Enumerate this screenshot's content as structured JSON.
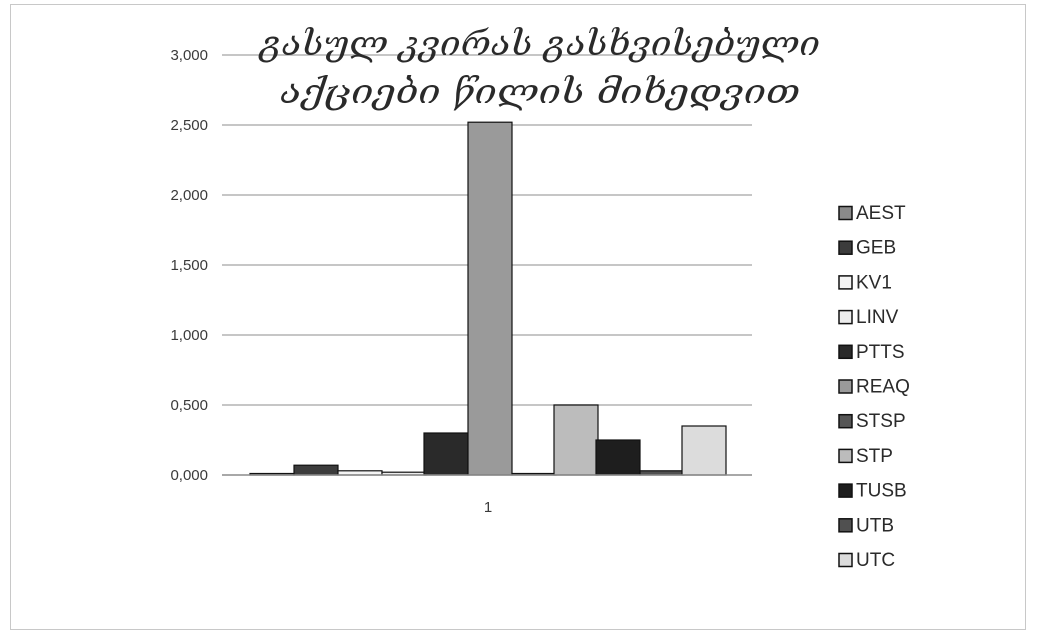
{
  "chart_data": {
    "type": "bar",
    "title": "გასულ კვირას გასხვისებული აქციები წილის მიხედვით",
    "title_lines": [
      "გასულ კვირას გასხვისებული",
      "აქციები წილის მიხედვით"
    ],
    "categories": [
      "1"
    ],
    "xlabel": "",
    "ylabel": "",
    "ylim": [
      0,
      3
    ],
    "yticks": [
      0,
      0.5,
      1,
      1.5,
      2,
      2.5,
      3
    ],
    "ytick_labels": [
      "0,000",
      "0,500",
      "1,000",
      "1,500",
      "2,000",
      "2,500",
      "3,000"
    ],
    "grid": true,
    "legend_position": "right",
    "series": [
      {
        "name": "AEST",
        "values": [
          0.01
        ],
        "color": "#8a8a8a"
      },
      {
        "name": "GEB",
        "values": [
          0.07
        ],
        "color": "#3c3c3c"
      },
      {
        "name": "KV1",
        "values": [
          0.03
        ],
        "color": "#f4f4f4"
      },
      {
        "name": "LINV",
        "values": [
          0.02
        ],
        "color": "#ececec"
      },
      {
        "name": "PTTS",
        "values": [
          0.3
        ],
        "color": "#2a2a2a"
      },
      {
        "name": "REAQ",
        "values": [
          2.52
        ],
        "color": "#9a9a9a"
      },
      {
        "name": "STSP",
        "values": [
          0.01
        ],
        "color": "#565656"
      },
      {
        "name": "STP",
        "values": [
          0.5
        ],
        "color": "#bcbcbc"
      },
      {
        "name": "TUSB",
        "values": [
          0.25
        ],
        "color": "#1e1e1e"
      },
      {
        "name": "UTB",
        "values": [
          0.03
        ],
        "color": "#505050"
      },
      {
        "name": "UTC",
        "values": [
          0.35
        ],
        "color": "#dcdcdc"
      }
    ]
  }
}
